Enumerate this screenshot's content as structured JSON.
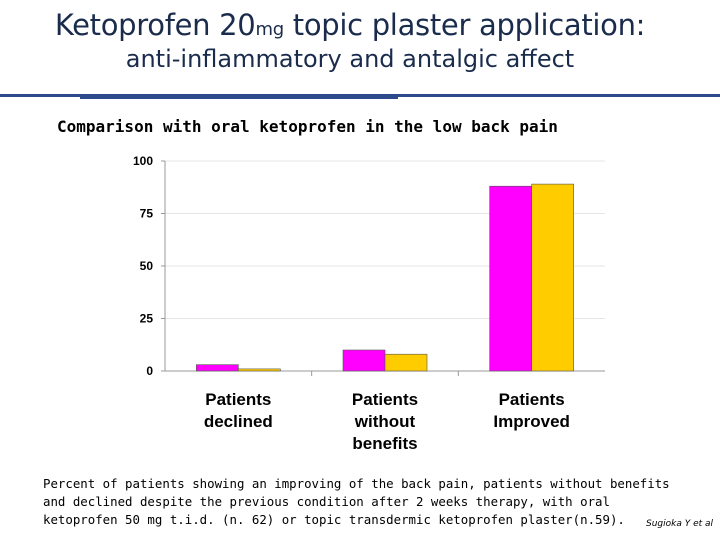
{
  "title": {
    "main_before": "Ketoprofen 20",
    "main_unit": "mg",
    "main_after": " topic plaster application:",
    "subtitle": "anti-inflammatory and antalgic affect"
  },
  "comparison_heading": "Comparison with oral ketoprofen in the low back pain",
  "chart_data": {
    "type": "bar",
    "title": "Comparison with oral ketoprofen in the low back pain",
    "categories": [
      [
        "Patients",
        "declined"
      ],
      [
        "Patients",
        "without",
        "benefits"
      ],
      [
        "Patients",
        "Improved"
      ]
    ],
    "series": [
      {
        "name": "oral ketoprofen 50 mg t.i.d. (n. 62)",
        "color": "#ff00ff",
        "values": [
          3,
          10,
          88
        ]
      },
      {
        "name": "topic transdermic ketoprofen plaster (n. 59)",
        "color": "#ffcc00",
        "values": [
          1,
          8,
          89
        ]
      }
    ],
    "ylim": [
      0,
      100
    ],
    "yticks": [
      0,
      25,
      50,
      75,
      100
    ],
    "xlabel": "",
    "ylabel": "",
    "grid": true,
    "legend": "none"
  },
  "caption": "Percent of patients showing an improving of the back pain, patients without benefits and declined despite the previous condition after 2 weeks therapy, with oral ketoprofen 50 mg t.i.d. (n. 62) or topic transdermic ketoprofen plaster(n.59).",
  "author": "Sugioka Y et al"
}
